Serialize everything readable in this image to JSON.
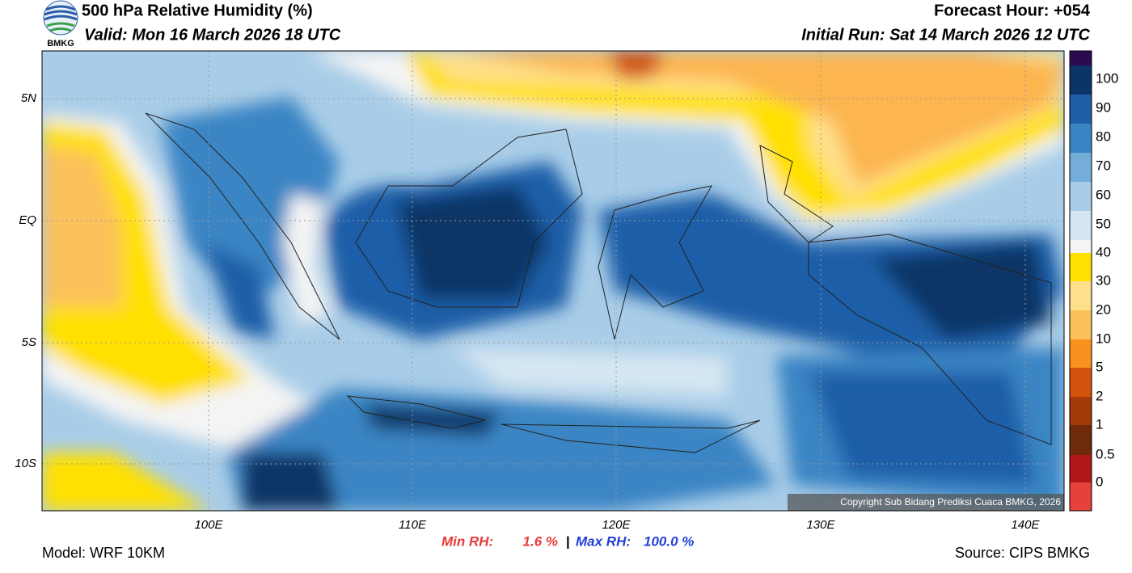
{
  "header": {
    "title": "500 hPa Relative Humidity (%)",
    "valid": "Valid: Mon 16 March 2026 18 UTC",
    "forecast_hour": "Forecast Hour: +054",
    "initial_run": "Initial Run: Sat 14 March 2026 12 UTC",
    "logo_text": "BMKG"
  },
  "map": {
    "lat_labels": [
      "5N",
      "EQ",
      "5S",
      "10S"
    ],
    "lon_labels": [
      "100E",
      "110E",
      "120E",
      "130E",
      "140E"
    ],
    "copyright": "Copyright Sub Bidang Prediksi Cuaca BMKG, 2026"
  },
  "colorbar": {
    "labels": [
      "100",
      "90",
      "80",
      "70",
      "60",
      "50",
      "40",
      "30",
      "20",
      "10",
      "5",
      "2",
      "1",
      "0.5",
      "0"
    ]
  },
  "footer": {
    "model": "Model: WRF 10KM",
    "min_rh_label": "Min RH:",
    "min_rh": "1.6 %",
    "separator": "|",
    "max_rh_label": "Max RH:",
    "max_rh": "100.0 %",
    "source": "Source: CIPS BMKG"
  }
}
